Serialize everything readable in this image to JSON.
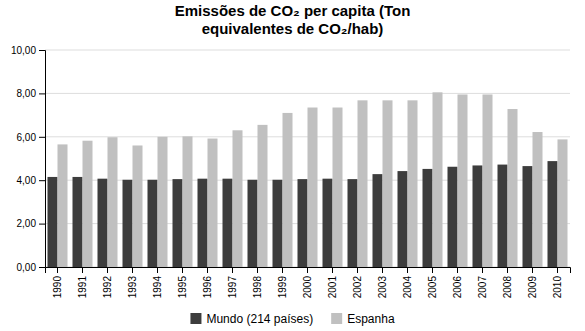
{
  "chart_data": {
    "type": "bar",
    "title": "Emissões de CO₂ per capita (Ton\nequivalentes de CO₂/hab)",
    "categories": [
      "1990",
      "1991",
      "1992",
      "1993",
      "1994",
      "1995",
      "1996",
      "1997",
      "1998",
      "1999",
      "2000",
      "2001",
      "2002",
      "2003",
      "2004",
      "2005",
      "2006",
      "2007",
      "2008",
      "2009",
      "2010"
    ],
    "series": [
      {
        "name": "Mundo (214 países)",
        "color": "#3d3d3d",
        "values": [
          4.15,
          4.15,
          4.07,
          4.02,
          4.02,
          4.05,
          4.07,
          4.07,
          4.02,
          4.02,
          4.05,
          4.07,
          4.05,
          4.28,
          4.42,
          4.52,
          4.62,
          4.68,
          4.72,
          4.65,
          4.88
        ]
      },
      {
        "name": "Espanha",
        "color": "#c0c0c0",
        "values": [
          5.65,
          5.82,
          5.98,
          5.6,
          6.0,
          6.02,
          5.92,
          6.3,
          6.55,
          7.1,
          7.35,
          7.35,
          7.68,
          7.68,
          7.68,
          8.05,
          7.95,
          7.95,
          7.28,
          6.22,
          5.88
        ]
      }
    ],
    "ylim": [
      0,
      10
    ],
    "yticks": [
      {
        "value": 0,
        "label": "0,00"
      },
      {
        "value": 2,
        "label": "2,00"
      },
      {
        "value": 4,
        "label": "4,00"
      },
      {
        "value": 6,
        "label": "6,00"
      },
      {
        "value": 8,
        "label": "8,00"
      },
      {
        "value": 10,
        "label": "10,00"
      }
    ],
    "grid": true,
    "legend": "bottom"
  }
}
